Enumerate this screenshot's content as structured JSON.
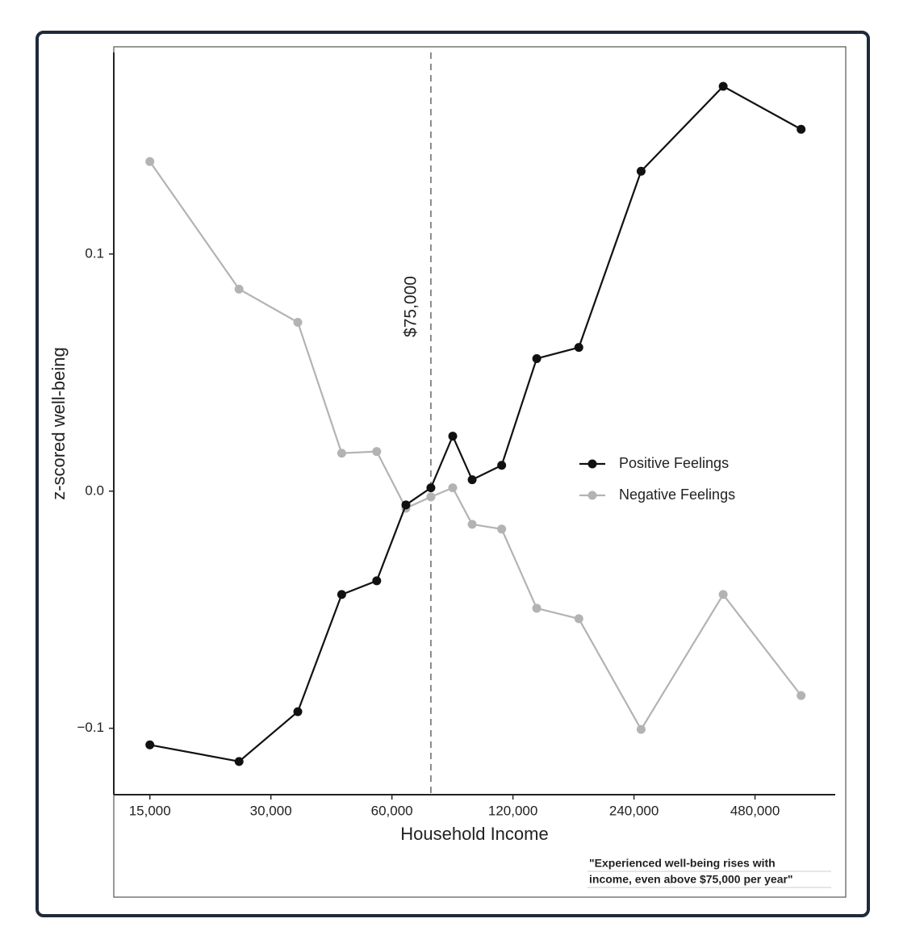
{
  "chart_data": {
    "type": "line",
    "x_label": "Household Income",
    "y_label": "z-scored well-being",
    "xscale": "log",
    "x": [
      15000,
      25000,
      35000,
      45000,
      55000,
      65000,
      75000,
      85000,
      95000,
      112500,
      137500,
      175000,
      250000,
      400000,
      625000
    ],
    "series": [
      {
        "name": "Positive Feelings",
        "color": "#111111",
        "values": [
          -0.107,
          -0.114,
          -0.093,
          -0.0436,
          -0.0378,
          -0.0058,
          0.0014,
          0.0232,
          0.0048,
          0.0109,
          0.0559,
          0.0606,
          0.1349,
          0.1707,
          0.1526
        ]
      },
      {
        "name": "Negative Feelings",
        "color": "#b3b3b3",
        "values": [
          0.139,
          0.0852,
          0.0712,
          0.016,
          0.0167,
          -0.0072,
          -0.0024,
          0.0014,
          -0.014,
          -0.016,
          -0.0494,
          -0.0538,
          -0.1005,
          -0.0436,
          -0.0862
        ]
      }
    ],
    "xlim": [
      12200,
      760000
    ],
    "ylim": [
      -0.128,
      0.185
    ],
    "xticks": [
      {
        "value": 15000,
        "label": "15,000"
      },
      {
        "value": 30000,
        "label": "30,000"
      },
      {
        "value": 60000,
        "label": "60,000"
      },
      {
        "value": 120000,
        "label": "120,000"
      },
      {
        "value": 240000,
        "label": "240,000"
      },
      {
        "value": 480000,
        "label": "480,000"
      }
    ],
    "yticks": [
      {
        "value": -0.1,
        "label": "−0.1"
      },
      {
        "value": 0,
        "label": "0.0"
      },
      0.1
    ],
    "vline": {
      "value": 75000,
      "label": "$75,000"
    },
    "legend": "right",
    "annotation": [
      "\"Experienced well-being rises with",
      "income, even above $75,000 per year\""
    ]
  }
}
